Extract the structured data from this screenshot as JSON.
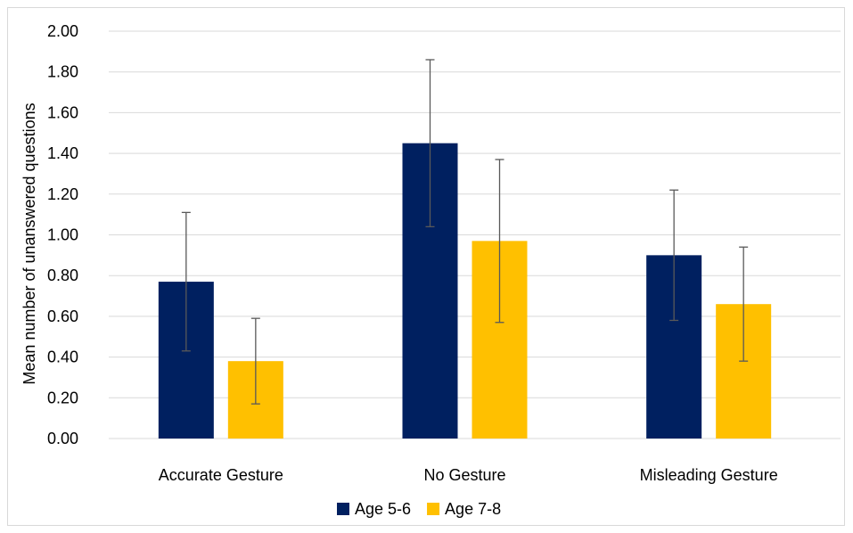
{
  "chart_data": {
    "type": "bar",
    "title": "",
    "xlabel": "",
    "ylabel": "Mean number of unanswered questions",
    "ylim": [
      0,
      2
    ],
    "yticks": [
      "0.00",
      "0.20",
      "0.40",
      "0.60",
      "0.80",
      "1.00",
      "1.20",
      "1.40",
      "1.60",
      "1.80",
      "2.00"
    ],
    "categories": [
      "Accurate Gesture",
      "No Gesture",
      "Misleading Gesture"
    ],
    "series": [
      {
        "name": "Age 5-6",
        "color": "#002060",
        "values": [
          0.77,
          1.45,
          0.9
        ],
        "error": [
          0.34,
          0.41,
          0.32
        ]
      },
      {
        "name": "Age 7-8",
        "color": "#FFC000",
        "values": [
          0.38,
          0.97,
          0.66
        ],
        "error": [
          0.21,
          0.4,
          0.28
        ]
      }
    ],
    "grid": true,
    "legend": "bottom-center"
  }
}
